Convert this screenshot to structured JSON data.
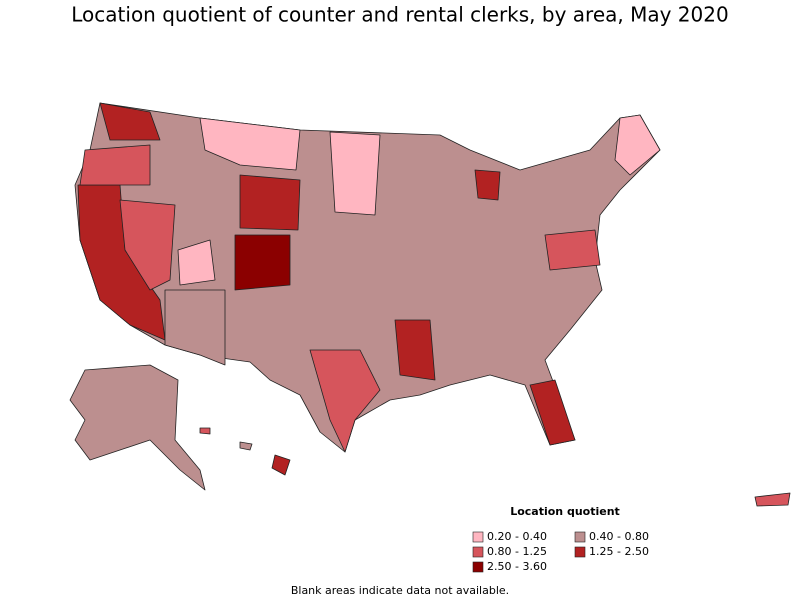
{
  "title": "Location quotient of counter and rental clerks, by area, May 2020",
  "legend": {
    "title": "Location quotient",
    "items": [
      {
        "label": "0.20 - 0.40",
        "color": "#ffb6c1"
      },
      {
        "label": "0.40 - 0.80",
        "color": "#bc8f8f"
      },
      {
        "label": "0.80 - 1.25",
        "color": "#d6555c"
      },
      {
        "label": "1.25 - 2.50",
        "color": "#b22222"
      },
      {
        "label": "2.50 - 3.60",
        "color": "#8b0000"
      }
    ]
  },
  "footnote": "Blank areas indicate data not available."
}
